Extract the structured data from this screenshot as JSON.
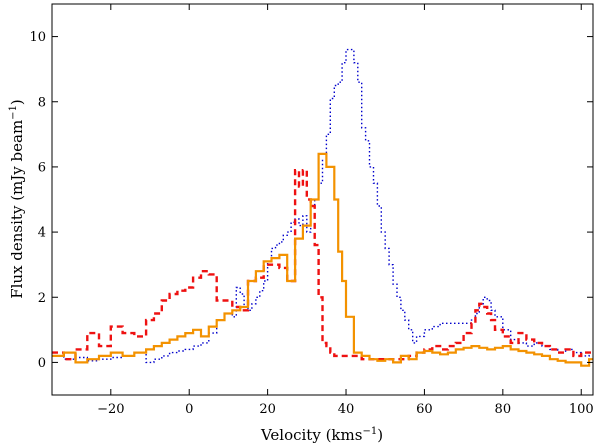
{
  "chart_data": {
    "type": "line",
    "step": true,
    "title": "",
    "xlabel": "Velocity (kms",
    "xlabel_sup": "−1",
    "xlabel_suffix": ")",
    "ylabel": "Flux density (mJy beam",
    "ylabel_sup": "−1",
    "ylabel_suffix": ")",
    "xlim": [
      -35,
      103
    ],
    "ylim": [
      -1,
      11
    ],
    "xticks": [
      -20,
      0,
      20,
      40,
      60,
      80,
      100
    ],
    "xtick_labels": [
      "−20",
      "0",
      "20",
      "40",
      "60",
      "80",
      "100"
    ],
    "yticks": [
      0,
      2,
      4,
      6,
      8,
      10
    ],
    "ytick_labels": [
      "0",
      "2",
      "4",
      "6",
      "8",
      "10"
    ],
    "series": [
      {
        "name": "blue-dotted",
        "color": "#0000cc",
        "style": "dotted",
        "x": [
          -35,
          -32,
          -29,
          -26,
          -23,
          -20,
          -17,
          -14,
          -11,
          -9,
          -7,
          -5,
          -3,
          -1,
          1,
          3,
          5,
          7,
          9,
          11,
          12,
          13,
          14,
          15,
          16,
          17,
          18,
          19,
          20,
          21,
          22,
          23,
          24,
          25,
          26,
          27,
          28,
          29,
          30,
          31,
          32,
          33,
          34,
          35,
          36,
          37,
          38,
          39,
          40,
          41,
          42,
          43,
          44,
          45,
          46,
          47,
          48,
          49,
          50,
          51,
          52,
          53,
          54,
          55,
          56,
          57,
          58,
          60,
          62,
          64,
          66,
          68,
          70,
          72,
          73,
          74,
          75,
          76,
          77,
          78,
          80,
          82,
          84,
          86,
          88,
          90,
          92,
          94,
          96,
          98,
          100,
          102,
          103
        ],
        "values": [
          0.2,
          0.1,
          0.15,
          0.05,
          0.1,
          0.15,
          0.2,
          0.3,
          0.0,
          0.1,
          0.2,
          0.3,
          0.35,
          0.4,
          0.5,
          0.6,
          0.9,
          1.3,
          1.5,
          1.4,
          2.3,
          2.1,
          1.7,
          1.6,
          1.8,
          2.0,
          2.2,
          2.5,
          3.1,
          3.5,
          3.6,
          3.7,
          3.9,
          4.0,
          4.3,
          4.4,
          4.2,
          4.5,
          4.0,
          4.8,
          5.0,
          5.5,
          6.2,
          7.0,
          8.1,
          8.5,
          8.6,
          9.2,
          9.6,
          9.6,
          9.2,
          8.6,
          7.2,
          6.8,
          6.0,
          5.5,
          4.8,
          4.0,
          3.5,
          3.0,
          2.4,
          2.0,
          1.6,
          1.3,
          1.0,
          0.6,
          0.8,
          1.0,
          1.1,
          1.2,
          1.2,
          1.2,
          1.2,
          1.3,
          1.5,
          1.8,
          2.0,
          1.9,
          1.6,
          1.4,
          1.0,
          0.7,
          0.6,
          0.5,
          0.6,
          0.5,
          0.4,
          0.3,
          0.4,
          0.3,
          0.2,
          0.3,
          0.3
        ]
      },
      {
        "name": "red-dashed",
        "color": "#ee1111",
        "style": "dashed",
        "x": [
          -35,
          -32,
          -29,
          -26,
          -23,
          -20,
          -17,
          -14,
          -11,
          -9,
          -7,
          -5,
          -3,
          -1,
          1,
          3,
          5,
          7,
          9,
          11,
          13,
          15,
          17,
          19,
          21,
          23,
          25,
          27,
          28,
          29,
          30,
          31,
          32,
          33,
          34,
          35,
          36,
          37,
          38,
          39,
          40,
          42,
          44,
          46,
          48,
          50,
          52,
          54,
          56,
          58,
          60,
          62,
          64,
          66,
          68,
          70,
          72,
          73,
          74,
          75,
          76,
          77,
          78,
          80,
          82,
          84,
          86,
          88,
          90,
          92,
          94,
          96,
          98,
          100,
          102,
          103
        ],
        "values": [
          0.3,
          0.1,
          0.4,
          0.9,
          0.5,
          1.1,
          0.9,
          0.8,
          1.3,
          1.5,
          1.9,
          2.1,
          2.2,
          2.3,
          2.6,
          2.8,
          2.7,
          1.9,
          1.9,
          1.7,
          1.6,
          2.5,
          2.6,
          3.0,
          3.0,
          2.9,
          2.5,
          5.9,
          5.4,
          5.9,
          5.0,
          4.8,
          3.6,
          2.0,
          0.6,
          0.5,
          0.3,
          0.2,
          0.2,
          0.2,
          0.2,
          0.2,
          0.1,
          0.1,
          0.1,
          0.1,
          0.1,
          0.1,
          0.2,
          0.3,
          0.4,
          0.5,
          0.4,
          0.5,
          0.6,
          0.9,
          1.2,
          1.6,
          1.8,
          1.7,
          1.5,
          1.3,
          1.0,
          0.8,
          0.6,
          0.9,
          0.7,
          0.6,
          0.5,
          0.4,
          0.3,
          0.4,
          0.2,
          0.3,
          0.3,
          0.3
        ]
      },
      {
        "name": "orange-solid",
        "color": "#f39200",
        "style": "solid",
        "x": [
          -35,
          -32,
          -29,
          -26,
          -23,
          -20,
          -17,
          -14,
          -11,
          -9,
          -7,
          -5,
          -3,
          -1,
          1,
          3,
          5,
          7,
          9,
          11,
          13,
          15,
          17,
          19,
          21,
          23,
          25,
          27,
          29,
          31,
          33,
          35,
          37,
          38,
          39,
          40,
          42,
          44,
          46,
          48,
          50,
          52,
          54,
          56,
          58,
          60,
          62,
          64,
          66,
          68,
          70,
          72,
          74,
          76,
          78,
          80,
          82,
          84,
          86,
          88,
          90,
          92,
          94,
          96,
          98,
          100,
          102,
          103
        ],
        "values": [
          0.2,
          0.3,
          0.0,
          0.1,
          0.2,
          0.3,
          0.2,
          0.3,
          0.4,
          0.5,
          0.6,
          0.7,
          0.8,
          0.9,
          1.0,
          0.8,
          1.1,
          1.3,
          1.5,
          1.6,
          1.7,
          2.5,
          2.8,
          3.1,
          3.2,
          3.3,
          2.5,
          3.8,
          4.2,
          5.0,
          6.4,
          6.0,
          5.0,
          3.4,
          2.5,
          1.4,
          0.3,
          0.2,
          0.1,
          0.05,
          0.1,
          0.0,
          0.2,
          0.1,
          0.3,
          0.35,
          0.3,
          0.25,
          0.3,
          0.4,
          0.45,
          0.5,
          0.45,
          0.4,
          0.45,
          0.5,
          0.4,
          0.35,
          0.3,
          0.25,
          0.2,
          0.1,
          0.05,
          0.0,
          0.0,
          -0.1,
          0.1,
          0.1
        ]
      }
    ]
  }
}
